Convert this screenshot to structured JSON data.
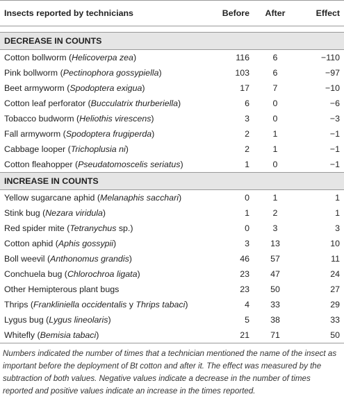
{
  "table": {
    "header": [
      "Insects reported by technicians",
      "Before",
      "After",
      "Effect"
    ],
    "sections": [
      {
        "title": "DECREASE IN COUNTS",
        "rows": [
          {
            "name": [
              "Cotton bollworm (",
              "Helicoverpa zea",
              ")"
            ],
            "before": 116,
            "after": 6,
            "effect": "−110"
          },
          {
            "name": [
              "Pink bollworm (",
              "Pectinophora gossypiella",
              ")"
            ],
            "before": 103,
            "after": 6,
            "effect": "−97"
          },
          {
            "name": [
              "Beet armyworm (",
              "Spodoptera exigua",
              ")"
            ],
            "before": 17,
            "after": 7,
            "effect": "−10"
          },
          {
            "name": [
              "Cotton leaf perforator (",
              "Bucculatrix thurberiella",
              ")"
            ],
            "before": 6,
            "after": 0,
            "effect": "−6"
          },
          {
            "name": [
              "Tobacco budworm (",
              "Heliothis virescens",
              ")"
            ],
            "before": 3,
            "after": 0,
            "effect": "−3"
          },
          {
            "name": [
              "Fall armyworm (",
              "Spodoptera frugiperda",
              ")"
            ],
            "before": 2,
            "after": 1,
            "effect": "−1"
          },
          {
            "name": [
              "Cabbage looper (",
              "Trichoplusia ni",
              ")"
            ],
            "before": 2,
            "after": 1,
            "effect": "−1"
          },
          {
            "name": [
              "Cotton fleahopper (",
              "Pseudatomoscelis seriatus",
              ")"
            ],
            "before": 1,
            "after": 0,
            "effect": "−1"
          }
        ]
      },
      {
        "title": "INCREASE IN COUNTS",
        "rows": [
          {
            "name": [
              "Yellow sugarcane aphid (",
              "Melanaphis sacchari",
              ")"
            ],
            "before": 0,
            "after": 1,
            "effect": "1"
          },
          {
            "name": [
              "Stink bug (",
              "Nezara viridula",
              ")"
            ],
            "before": 1,
            "after": 2,
            "effect": "1"
          },
          {
            "name": [
              "Red spider mite (",
              "Tetranychus",
              " sp.)"
            ],
            "before": 0,
            "after": 3,
            "effect": "3"
          },
          {
            "name": [
              "Cotton aphid (",
              "Aphis gossypii",
              ")"
            ],
            "before": 3,
            "after": 13,
            "effect": "10"
          },
          {
            "name": [
              "Boll weevil (",
              "Anthonomus grandis",
              ")"
            ],
            "before": 46,
            "after": 57,
            "effect": "11"
          },
          {
            "name": [
              "Conchuela bug (",
              "Chlorochroa ligata",
              ")"
            ],
            "before": 23,
            "after": 47,
            "effect": "24"
          },
          {
            "name": [
              "Other Hemipterous plant bugs"
            ],
            "before": 23,
            "after": 50,
            "effect": "27"
          },
          {
            "name": [
              "Thrips (",
              "Frankliniella occidentalis",
              " y ",
              "Thrips tabaci",
              ")"
            ],
            "before": 4,
            "after": 33,
            "effect": "29"
          },
          {
            "name": [
              "Lygus bug (",
              "Lygus lineolaris",
              ")"
            ],
            "before": 5,
            "after": 38,
            "effect": "33"
          },
          {
            "name": [
              "Whitefly (",
              "Bemisia tabaci",
              ")"
            ],
            "before": 21,
            "after": 71,
            "effect": "50"
          }
        ]
      }
    ],
    "note": "Numbers indicated the number of times that a technician mentioned the name of the insect as important before the deployment of Bt cotton and after it. The effect was measured by the subtraction of both values. Negative values indicate a decrease in the number of times reported and positive values indicate an increase in the times reported."
  }
}
